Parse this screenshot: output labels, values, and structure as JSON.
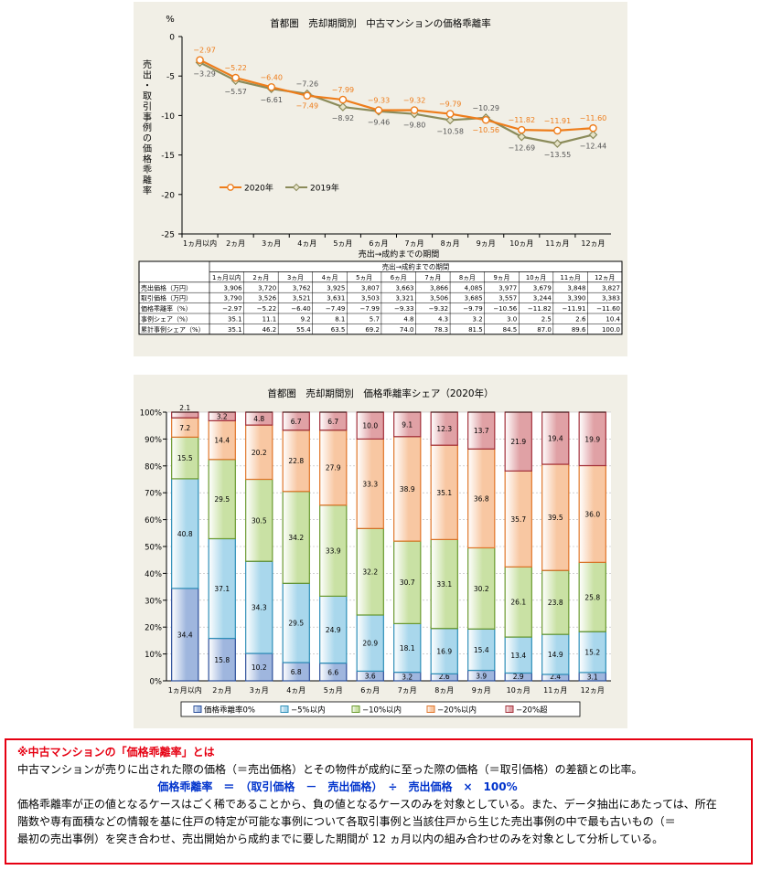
{
  "line_chart": {
    "title": "首都圏　売却期間別　中古マンションの価格乖離率",
    "unit": "%",
    "ylabel": "売出・取引事例の価格乖離率",
    "xlabel": "売出→成約までの期間",
    "colors": {
      "s2020": "#ee7d1b",
      "s2019": "#8b8b5a"
    }
  },
  "table": {
    "group_header": "売出→成約までの期間",
    "columns": [
      "1ヵ月以内",
      "2ヵ月",
      "3ヵ月",
      "4ヵ月",
      "5ヵ月",
      "6ヵ月",
      "7ヵ月",
      "8ヵ月",
      "9ヵ月",
      "10ヵ月",
      "11ヵ月",
      "12ヵ月"
    ],
    "rows": [
      {
        "label": "売出価格（万円）",
        "values": [
          "3,906",
          "3,720",
          "3,762",
          "3,925",
          "3,807",
          "3,663",
          "3,866",
          "4,085",
          "3,977",
          "3,679",
          "3,848",
          "3,827"
        ]
      },
      {
        "label": "取引価格（万円）",
        "values": [
          "3,790",
          "3,526",
          "3,521",
          "3,631",
          "3,503",
          "3,321",
          "3,506",
          "3,685",
          "3,557",
          "3,244",
          "3,390",
          "3,383"
        ]
      },
      {
        "label": "価格乖離率（%）",
        "values": [
          "−2.97",
          "−5.22",
          "−6.40",
          "−7.49",
          "−7.99",
          "−9.33",
          "−9.32",
          "−9.79",
          "−10.56",
          "−11.82",
          "−11.91",
          "−11.60"
        ]
      },
      {
        "label": "事例シェア（%）",
        "values": [
          "35.1",
          "11.1",
          "9.2",
          "8.1",
          "5.7",
          "4.8",
          "4.3",
          "3.2",
          "3.0",
          "2.5",
          "2.6",
          "10.4"
        ]
      },
      {
        "label": "累計事例シェア（%）",
        "values": [
          "35.1",
          "46.2",
          "55.4",
          "63.5",
          "69.2",
          "74.0",
          "78.3",
          "81.5",
          "84.5",
          "87.0",
          "89.6",
          "100.0"
        ]
      }
    ]
  },
  "bar_chart": {
    "title": "首都圏　売却期間別　価格乖離率シェア（2020年）"
  },
  "note": {
    "heading": "※中古マンションの「価格乖離率」とは",
    "line1": "中古マンションが売りに出された際の価格（＝売出価格）とその物件が成約に至った際の価格（＝取引価格）の差額との比率。",
    "formula": "価格乖離率　＝　（取引価格　－　売出価格）　÷　売出価格　×　100%",
    "line2": "価格乖離率が正の値となるケースはごく稀であることから、負の値となるケースのみを対象としている。また、データ抽出にあたっては、所在",
    "line3": "階数や専有面積などの情報を基に住戸の特定が可能な事例について各取引事例と当該住戸から生じた売出事例の中で最も古いもの（＝",
    "line4": "最初の売出事例）を突き合わせ、売出開始から成約までに要した期間が 12 ヵ月以内の組み合わせのみを対象として分析している。"
  },
  "chart_data": [
    {
      "type": "line",
      "title": "首都圏　売却期間別　中古マンションの価格乖離率",
      "ylabel": "売出・取引事例の価格乖離率",
      "xlabel": "売出→成約までの期間",
      "ylim": [
        -25,
        0
      ],
      "yticks": [
        0,
        -5,
        -10,
        -15,
        -20,
        -25
      ],
      "categories": [
        "1ヵ月以内",
        "2ヵ月",
        "3ヵ月",
        "4ヵ月",
        "5ヵ月",
        "6ヵ月",
        "7ヵ月",
        "8ヵ月",
        "9ヵ月",
        "10ヵ月",
        "11ヵ月",
        "12ヵ月"
      ],
      "legend_position": "lower-left",
      "grid": false,
      "series": [
        {
          "name": "2020年",
          "values": [
            -2.97,
            -5.22,
            -6.4,
            -7.49,
            -7.99,
            -9.33,
            -9.32,
            -9.79,
            -10.56,
            -11.82,
            -11.91,
            -11.6
          ],
          "labels": [
            "−2.97",
            "−5.22",
            "−6.40",
            "−7.49",
            "−7.99",
            "−9.33",
            "−9.32",
            "−9.79",
            "−10.56",
            "−11.82",
            "−11.91",
            "−11.60"
          ]
        },
        {
          "name": "2019年",
          "values": [
            -3.29,
            -5.57,
            -6.61,
            -7.26,
            -8.92,
            -9.46,
            -9.8,
            -10.58,
            -10.29,
            -12.69,
            -13.55,
            -12.44
          ],
          "labels": [
            "−3.29",
            "−5.57",
            "−6.61",
            "−7.26",
            "−8.92",
            "−9.46",
            "−9.80",
            "−10.58",
            "−10.29",
            "−12.69",
            "−13.55",
            "−12.44"
          ]
        }
      ]
    },
    {
      "type": "bar",
      "stacked": true,
      "title": "首都圏　売却期間別　価格乖離率シェア（2020年）",
      "ylim": [
        0,
        100
      ],
      "yticks": [
        "0%",
        "10%",
        "20%",
        "30%",
        "40%",
        "50%",
        "60%",
        "70%",
        "80%",
        "90%",
        "100%"
      ],
      "categories": [
        "1ヵ月以内",
        "2ヵ月",
        "3ヵ月",
        "4ヵ月",
        "5ヵ月",
        "6ヵ月",
        "7ヵ月",
        "8ヵ月",
        "9ヵ月",
        "10ヵ月",
        "11ヵ月",
        "12ヵ月"
      ],
      "legend_position": "bottom",
      "series": [
        {
          "name": "価格乖離率0%",
          "color": "#9fb6de",
          "values": [
            34.4,
            15.8,
            10.2,
            6.8,
            6.6,
            3.6,
            3.2,
            2.6,
            3.9,
            2.9,
            2.4,
            3.1
          ]
        },
        {
          "name": "−5%以内",
          "color": "#a9d7ec",
          "values": [
            40.8,
            37.1,
            34.3,
            29.5,
            24.9,
            20.9,
            18.1,
            16.9,
            15.4,
            13.4,
            14.9,
            15.2
          ]
        },
        {
          "name": "−10%以内",
          "color": "#c9e1a4",
          "values": [
            15.5,
            29.5,
            30.5,
            34.2,
            33.9,
            32.2,
            30.7,
            33.1,
            30.2,
            26.1,
            23.8,
            25.8
          ]
        },
        {
          "name": "−20%以内",
          "color": "#f8c7a2",
          "values": [
            7.2,
            14.4,
            20.2,
            22.8,
            27.9,
            33.3,
            38.9,
            35.1,
            36.8,
            35.7,
            39.5,
            36.0
          ]
        },
        {
          "name": "−20%超",
          "color": "#e0a1a5",
          "values": [
            2.1,
            3.2,
            4.8,
            6.7,
            6.7,
            10.0,
            9.1,
            12.3,
            13.7,
            21.9,
            19.4,
            19.9
          ]
        }
      ]
    }
  ]
}
